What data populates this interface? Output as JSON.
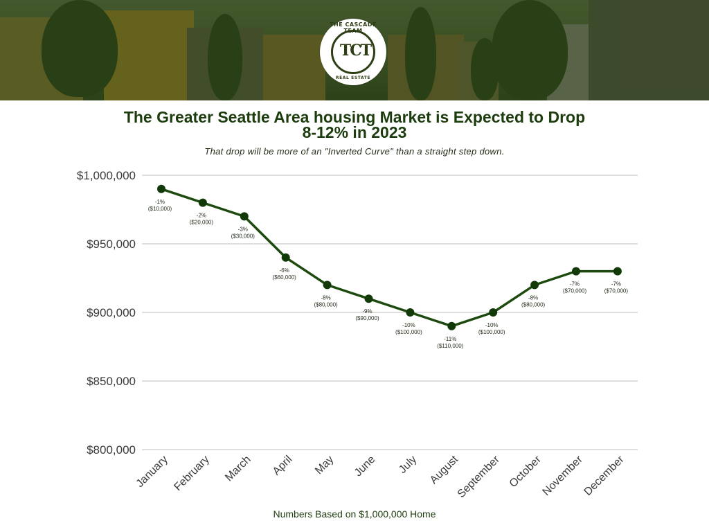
{
  "banner": {
    "logo": {
      "top_text": "THE CASCADE TEAM",
      "monogram": "TCT",
      "bottom_text": "REAL ESTATE"
    }
  },
  "header": {
    "title_line1": "The Greater Seattle Area housing Market is Expected to Drop",
    "title_line2": "8-12% in 2023",
    "subtitle": "That drop will be more of an \"Inverted Curve\" than a straight step down."
  },
  "footnote": "Numbers Based on $1,000,000 Home",
  "colors": {
    "line": "#1d4a0f",
    "point": "#123a08",
    "title": "#1c3c0e",
    "grid": "#d4d4d4",
    "axis_text": "#3a3a3a"
  },
  "chart_data": {
    "type": "line",
    "title": "The Greater Seattle Area housing Market is Expected to Drop 8-12% in 2023",
    "subtitle": "That drop will be more of an \"Inverted Curve\" than a straight step down.",
    "xlabel": "",
    "ylabel": "",
    "categories": [
      "January",
      "February",
      "March",
      "April",
      "May",
      "June",
      "July",
      "August",
      "September",
      "October",
      "November",
      "December"
    ],
    "series": [
      {
        "name": "Home value",
        "values": [
          990000,
          980000,
          970000,
          940000,
          920000,
          910000,
          900000,
          890000,
          900000,
          920000,
          930000,
          930000
        ]
      }
    ],
    "data_labels": [
      {
        "pct": "-1%",
        "amount": "($10,000)"
      },
      {
        "pct": "-2%",
        "amount": "($20,000)"
      },
      {
        "pct": "-3%",
        "amount": "($30,000)"
      },
      {
        "pct": "-6%",
        "amount": "($60,000)"
      },
      {
        "pct": "-8%",
        "amount": "($80,000)"
      },
      {
        "pct": "-9%",
        "amount": "($90,000)"
      },
      {
        "pct": "-10%",
        "amount": "($100,000)"
      },
      {
        "pct": "-11%",
        "amount": "($110,000)"
      },
      {
        "pct": "-10%",
        "amount": "($100,000)"
      },
      {
        "pct": "-8%",
        "amount": "($80,000)"
      },
      {
        "pct": "-7%",
        "amount": "($70,000)"
      },
      {
        "pct": "-7%",
        "amount": "($70,000)"
      }
    ],
    "ylim": [
      800000,
      1000000
    ],
    "yticks": [
      1000000,
      950000,
      900000,
      850000,
      800000
    ],
    "ytick_labels": [
      "$1,000,000",
      "$950,000",
      "$900,000",
      "$850,000",
      "$800,000"
    ],
    "grid": true,
    "legend": "none",
    "annotation": "Numbers Based on $1,000,000 Home"
  }
}
